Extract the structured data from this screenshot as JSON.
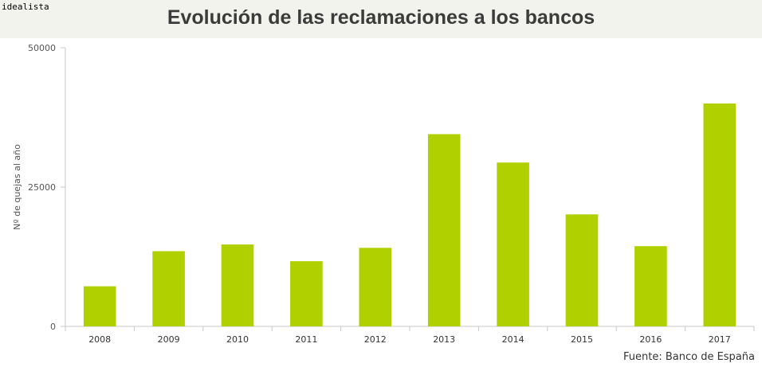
{
  "brand": {
    "logo_text": "idealista"
  },
  "source": "Fuente: Banco de España",
  "colors": {
    "bar": "#b0d000",
    "header_bg": "#f3f3ee",
    "axis": "#c8c8c8",
    "text": "#555555"
  },
  "chart_data": {
    "type": "bar",
    "title": "Evolución de las reclamaciones a los bancos",
    "xlabel": "",
    "ylabel": "Nº de quejas al año",
    "categories": [
      "2008",
      "2009",
      "2010",
      "2011",
      "2012",
      "2013",
      "2014",
      "2015",
      "2016",
      "2017"
    ],
    "values": [
      7200,
      13500,
      14700,
      11700,
      14100,
      34500,
      29400,
      20100,
      14400,
      40000
    ],
    "ylim": [
      0,
      50000
    ],
    "yticks": [
      0,
      25000,
      50000
    ],
    "ytick_labels": [
      "0",
      "25000",
      "50000"
    ],
    "grid": false,
    "legend": "none"
  }
}
